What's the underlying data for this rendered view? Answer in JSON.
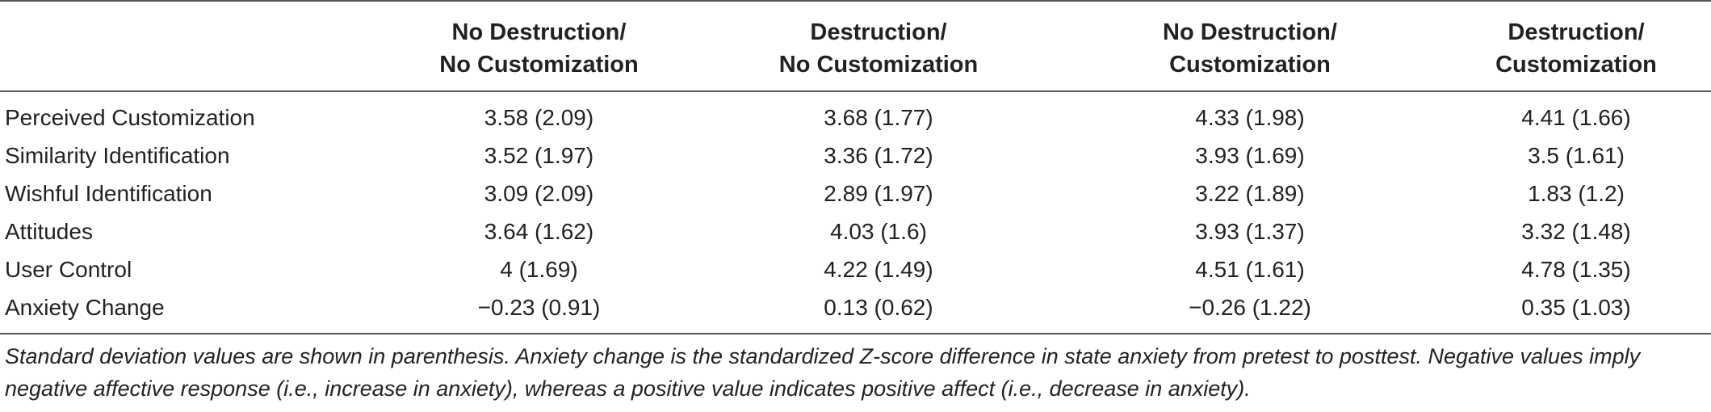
{
  "table": {
    "columns": [
      {
        "line1": "",
        "line2": ""
      },
      {
        "line1": "No Destruction/",
        "line2": "No Customization"
      },
      {
        "line1": "Destruction/",
        "line2": "No Customization"
      },
      {
        "line1": "No Destruction/",
        "line2": "Customization"
      },
      {
        "line1": "Destruction/",
        "line2": "Customization"
      }
    ],
    "rows": [
      {
        "label": "Perceived Customization",
        "cells": [
          "3.58 (2.09)",
          "3.68 (1.77)",
          "4.33 (1.98)",
          "4.41 (1.66)"
        ]
      },
      {
        "label": "Similarity Identification",
        "cells": [
          "3.52 (1.97)",
          "3.36 (1.72)",
          "3.93 (1.69)",
          "3.5 (1.61)"
        ]
      },
      {
        "label": "Wishful Identification",
        "cells": [
          "3.09 (2.09)",
          "2.89 (1.97)",
          "3.22 (1.89)",
          "1.83 (1.2)"
        ]
      },
      {
        "label": "Attitudes",
        "cells": [
          "3.64 (1.62)",
          "4.03 (1.6)",
          "3.93 (1.37)",
          "3.32 (1.48)"
        ]
      },
      {
        "label": "User Control",
        "cells": [
          "4 (1.69)",
          "4.22 (1.49)",
          "4.51 (1.61)",
          "4.78 (1.35)"
        ]
      },
      {
        "label": "Anxiety Change",
        "cells": [
          "−0.23 (0.91)",
          "0.13 (0.62)",
          "−0.26 (1.22)",
          "0.35 (1.03)"
        ]
      }
    ]
  },
  "footnote": "Standard deviation values are shown in parenthesis. Anxiety change is the standardized Z-score difference in state anxiety from pretest to posttest. Negative values imply negative affective response (i.e., increase in anxiety), whereas a positive value indicates positive affect (i.e., decrease in anxiety)."
}
